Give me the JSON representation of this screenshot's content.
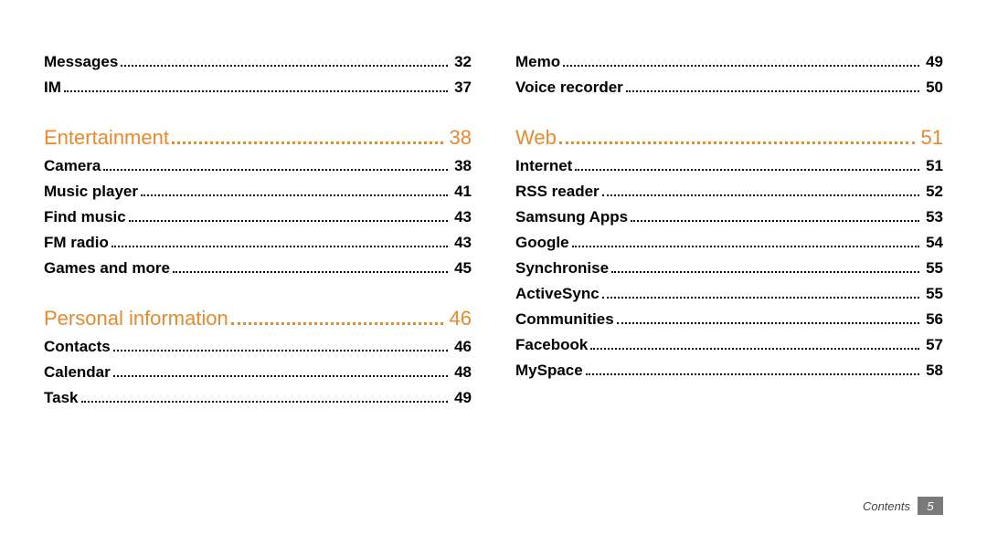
{
  "colors": {
    "section": "#e58a2e",
    "item_text": "#000000",
    "dots": "#000000",
    "footer_text": "#5a5a5a",
    "badge_bg": "#808080",
    "badge_text": "#ffffff"
  },
  "columns": [
    {
      "groups": [
        {
          "section": null,
          "items": [
            {
              "label": "Messages",
              "page": "32"
            },
            {
              "label": "IM",
              "page": "37"
            }
          ]
        },
        {
          "section": {
            "label": "Entertainment",
            "page": "38"
          },
          "items": [
            {
              "label": "Camera",
              "page": "38"
            },
            {
              "label": "Music player",
              "page": "41"
            },
            {
              "label": "Find music",
              "page": "43"
            },
            {
              "label": "FM radio",
              "page": "43"
            },
            {
              "label": "Games and more",
              "page": "45"
            }
          ]
        },
        {
          "section": {
            "label": "Personal information",
            "page": "46"
          },
          "items": [
            {
              "label": "Contacts",
              "page": "46"
            },
            {
              "label": "Calendar",
              "page": "48"
            },
            {
              "label": "Task",
              "page": "49"
            }
          ]
        }
      ]
    },
    {
      "groups": [
        {
          "section": null,
          "items": [
            {
              "label": "Memo",
              "page": "49"
            },
            {
              "label": "Voice recorder",
              "page": "50"
            }
          ]
        },
        {
          "section": {
            "label": "Web",
            "page": "51"
          },
          "items": [
            {
              "label": "Internet",
              "page": "51"
            },
            {
              "label": "RSS reader",
              "page": "52"
            },
            {
              "label": "Samsung Apps",
              "page": "53"
            },
            {
              "label": "Google",
              "page": "54"
            },
            {
              "label": "Synchronise",
              "page": "55"
            },
            {
              "label": "ActiveSync",
              "page": "55"
            },
            {
              "label": "Communities",
              "page": "56"
            },
            {
              "label": "Facebook",
              "page": "57"
            },
            {
              "label": "MySpace",
              "page": "58"
            }
          ]
        }
      ]
    }
  ],
  "footer": {
    "label": "Contents",
    "page": "5"
  }
}
